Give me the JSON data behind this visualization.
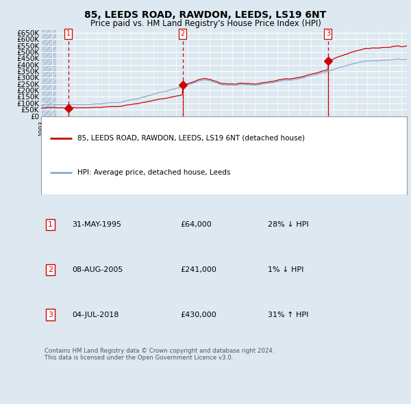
{
  "title": "85, LEEDS ROAD, RAWDON, LEEDS, LS19 6NT",
  "subtitle": "Price paid vs. HM Land Registry's House Price Index (HPI)",
  "bg_color": "#dde8f0",
  "plot_bg_color": "#dde8f0",
  "red_line_color": "#cc0000",
  "blue_line_color": "#88aacc",
  "sale_dates_num": [
    1995.41,
    2005.59,
    2018.5
  ],
  "sale_prices": [
    64000,
    241000,
    430000
  ],
  "sale_labels": [
    "1",
    "2",
    "3"
  ],
  "ylabel_ticks": [
    "£0",
    "£50K",
    "£100K",
    "£150K",
    "£200K",
    "£250K",
    "£300K",
    "£350K",
    "£400K",
    "£450K",
    "£500K",
    "£550K",
    "£600K",
    "£650K"
  ],
  "ytick_values": [
    0,
    50000,
    100000,
    150000,
    200000,
    250000,
    300000,
    350000,
    400000,
    450000,
    500000,
    550000,
    600000,
    650000
  ],
  "ylim": [
    0,
    670000
  ],
  "xlim_start": 1993.0,
  "xlim_end": 2025.5,
  "legend_prop_label": "85, LEEDS ROAD, RAWDON, LEEDS, LS19 6NT (detached house)",
  "legend_hpi_label": "HPI: Average price, detached house, Leeds",
  "table_rows": [
    {
      "num": "1",
      "date": "31-MAY-1995",
      "price": "£64,000",
      "hpi": "28% ↓ HPI"
    },
    {
      "num": "2",
      "date": "08-AUG-2005",
      "price": "£241,000",
      "hpi": "1% ↓ HPI"
    },
    {
      "num": "3",
      "date": "04-JUL-2018",
      "price": "£430,000",
      "hpi": "31% ↑ HPI"
    }
  ],
  "footnote": "Contains HM Land Registry data © Crown copyright and database right 2024.\nThis data is licensed under the Open Government Licence v3.0."
}
